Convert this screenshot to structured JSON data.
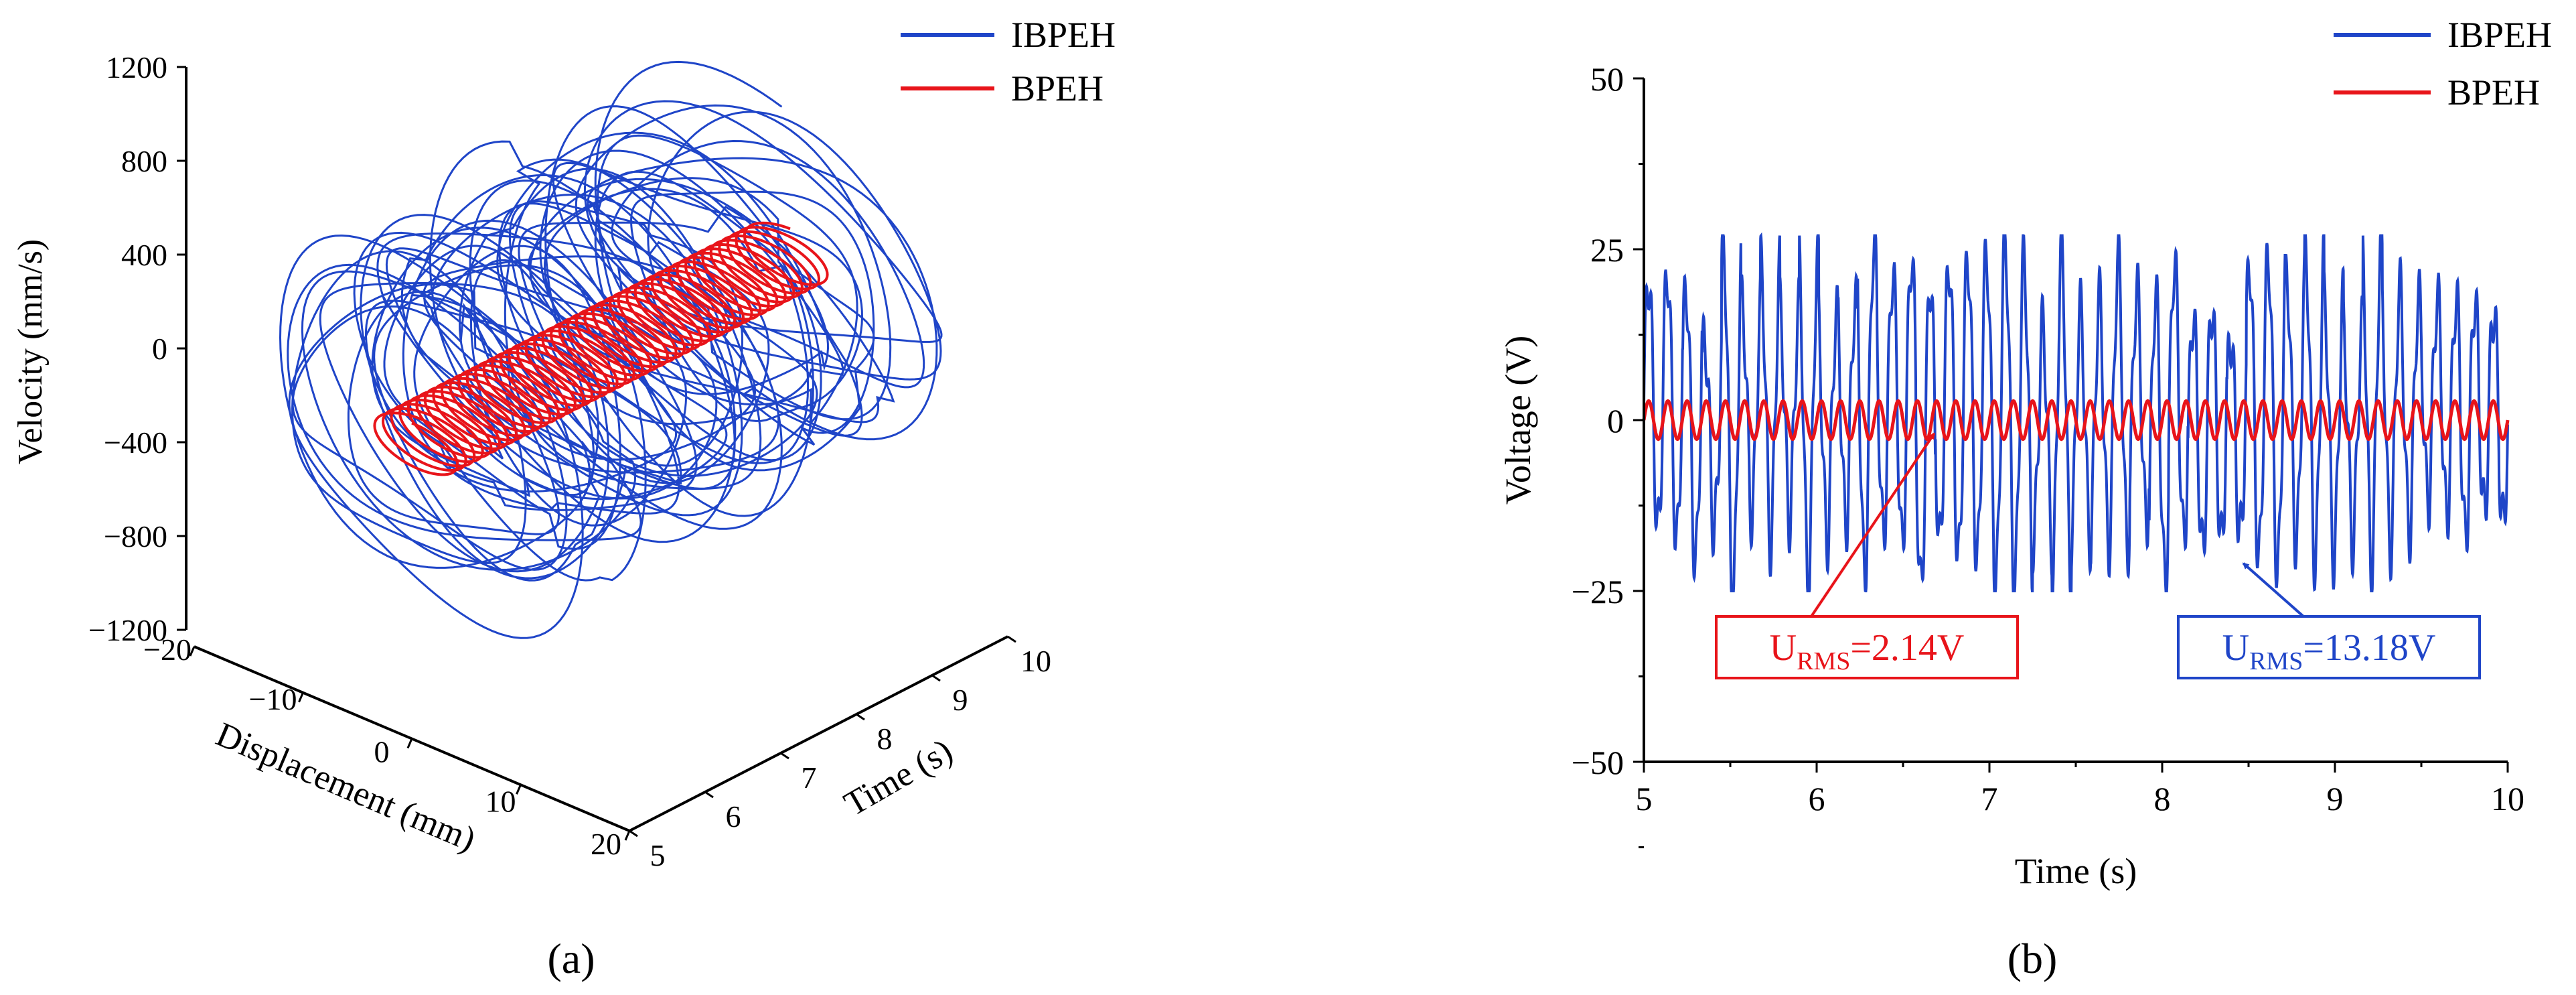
{
  "legend": {
    "series": [
      {
        "name": "IBPEH",
        "color": "#1f45c8"
      },
      {
        "name": "BPEH",
        "color": "#e8141a"
      }
    ]
  },
  "panel_labels": {
    "a": "(a)",
    "b": "(b)"
  },
  "chart_data": [
    {
      "id": "a",
      "type": "line",
      "projection": "3d",
      "zlabel": "Velocity (mm/s)",
      "xlabel": "Displacement (mm)",
      "ylabel": "Time (s)",
      "z_ticks": [
        "1200",
        "800",
        "400",
        "0",
        "−400",
        "−800",
        "−1200"
      ],
      "x_ticks": [
        "−20",
        "−10",
        "0",
        "10",
        "20"
      ],
      "y_ticks": [
        "5",
        "6",
        "7",
        "8",
        "9",
        "10"
      ],
      "xlim": [
        -20,
        20
      ],
      "ylim": [
        5,
        10
      ],
      "zlim": [
        -1200,
        1200
      ],
      "series": [
        {
          "name": "IBPEH",
          "color": "#1f45c8",
          "displacement_range": [
            -17,
            17
          ],
          "velocity_range": [
            -700,
            650
          ]
        },
        {
          "name": "BPEH",
          "color": "#e8141a",
          "displacement_range": [
            -4,
            4
          ],
          "velocity_range": [
            -100,
            100
          ]
        }
      ]
    },
    {
      "id": "b",
      "type": "line",
      "xlabel": "Time (s)",
      "ylabel": "Voltage (V)",
      "xlim": [
        5,
        10
      ],
      "ylim": [
        -50,
        50
      ],
      "x_ticks": [
        "5",
        "6",
        "7",
        "8",
        "9",
        "10"
      ],
      "y_ticks": [
        "50",
        "25",
        "0",
        "−25",
        "−50"
      ],
      "series": [
        {
          "name": "IBPEH",
          "color": "#1f45c8",
          "amplitude_range": [
            -25,
            27
          ]
        },
        {
          "name": "BPEH",
          "color": "#e8141a",
          "amplitude": 2.8,
          "frequency_hz": 9
        }
      ],
      "annotations": [
        {
          "main": "U",
          "sub": "RMS",
          "value": "=2.14V",
          "color": "#e8141a",
          "target_x": 6.68,
          "target_y": 0
        },
        {
          "main": "U",
          "sub": "RMS",
          "value": "=13.18V",
          "color": "#1f45c8",
          "target_x": 8.47,
          "target_y": -19
        }
      ]
    }
  ]
}
